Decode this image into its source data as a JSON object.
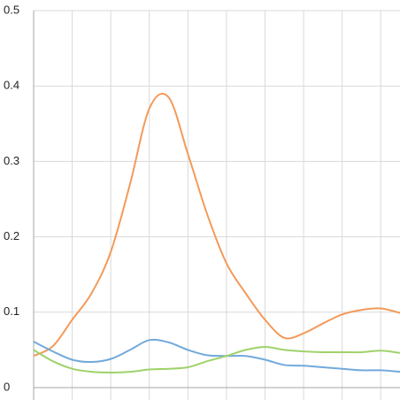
{
  "chart_data": {
    "type": "line",
    "categories": [
      null,
      null,
      null,
      null,
      null,
      null,
      null,
      null,
      null,
      null,
      null,
      null,
      null,
      null,
      null,
      null,
      null,
      null,
      null,
      null
    ],
    "series": [
      {
        "color": "#f39a5a",
        "values": [
          0.042,
          0.055,
          0.09,
          0.125,
          0.18,
          0.27,
          0.37,
          0.385,
          0.31,
          0.23,
          0.165,
          0.125,
          0.09,
          0.066,
          0.072,
          0.085,
          0.097,
          0.103,
          0.105,
          0.099
        ]
      },
      {
        "color": "#72a9dc",
        "values": [
          0.061,
          0.048,
          0.037,
          0.034,
          0.038,
          0.05,
          0.063,
          0.06,
          0.05,
          0.043,
          0.042,
          0.042,
          0.037,
          0.03,
          0.029,
          0.027,
          0.025,
          0.023,
          0.023,
          0.021
        ]
      },
      {
        "color": "#9fd26a",
        "values": [
          0.05,
          0.035,
          0.025,
          0.021,
          0.02,
          0.021,
          0.024,
          0.025,
          0.027,
          0.035,
          0.042,
          0.05,
          0.054,
          0.05,
          0.048,
          0.047,
          0.047,
          0.047,
          0.049,
          0.046
        ]
      }
    ],
    "ylim": [
      0,
      0.5
    ],
    "yticks": [
      0,
      0.1,
      0.2,
      0.3,
      0.4,
      0.5
    ],
    "grid": true
  }
}
